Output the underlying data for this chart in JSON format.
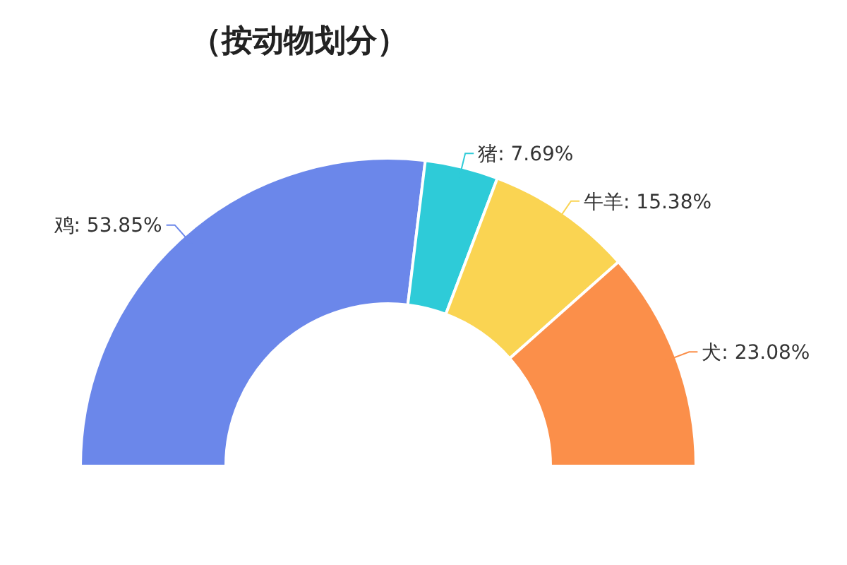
{
  "chart_data": {
    "type": "donut",
    "title": "（按动物划分）",
    "categories": [
      "鸡",
      "猪",
      "牛羊",
      "犬"
    ],
    "values": [
      53.85,
      7.69,
      15.38,
      23.08
    ],
    "value_labels": [
      "53.85%",
      "7.69%",
      "15.38%",
      "23.08%"
    ],
    "colors": [
      "#6b87ea",
      "#2ecbd8",
      "#fad452",
      "#fb8f4a"
    ]
  }
}
